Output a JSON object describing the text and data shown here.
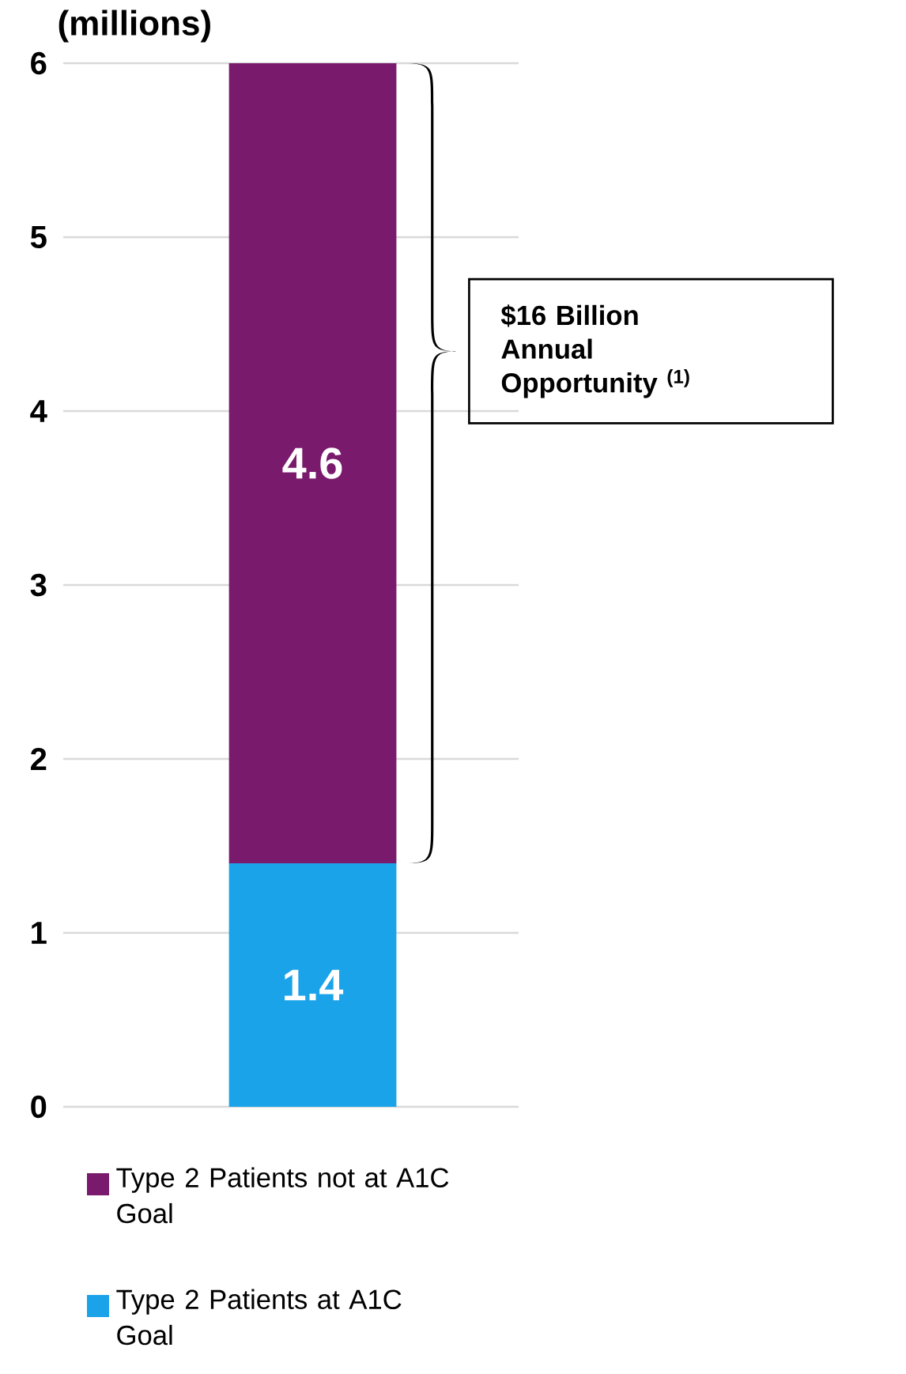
{
  "chart_data": {
    "type": "bar",
    "title": "(millions)",
    "stacked": true,
    "categories": [
      null
    ],
    "series": [
      {
        "name": "Type 2 Patients at A1C Goal",
        "color": "#1ba3ea",
        "values": [
          1.4
        ]
      },
      {
        "name": "Type 2 Patients not at A1C Goal",
        "color": "#7a1a6c",
        "values": [
          4.6
        ]
      }
    ],
    "ylim": [
      0,
      6
    ],
    "yticks": [
      0,
      1,
      2,
      3,
      4,
      5,
      6
    ],
    "grid": "y",
    "legend": "bottom",
    "data_labels": true,
    "annotations": [
      "$16 Billion Annual Opportunity $^{(1)}$"
    ]
  }
}
